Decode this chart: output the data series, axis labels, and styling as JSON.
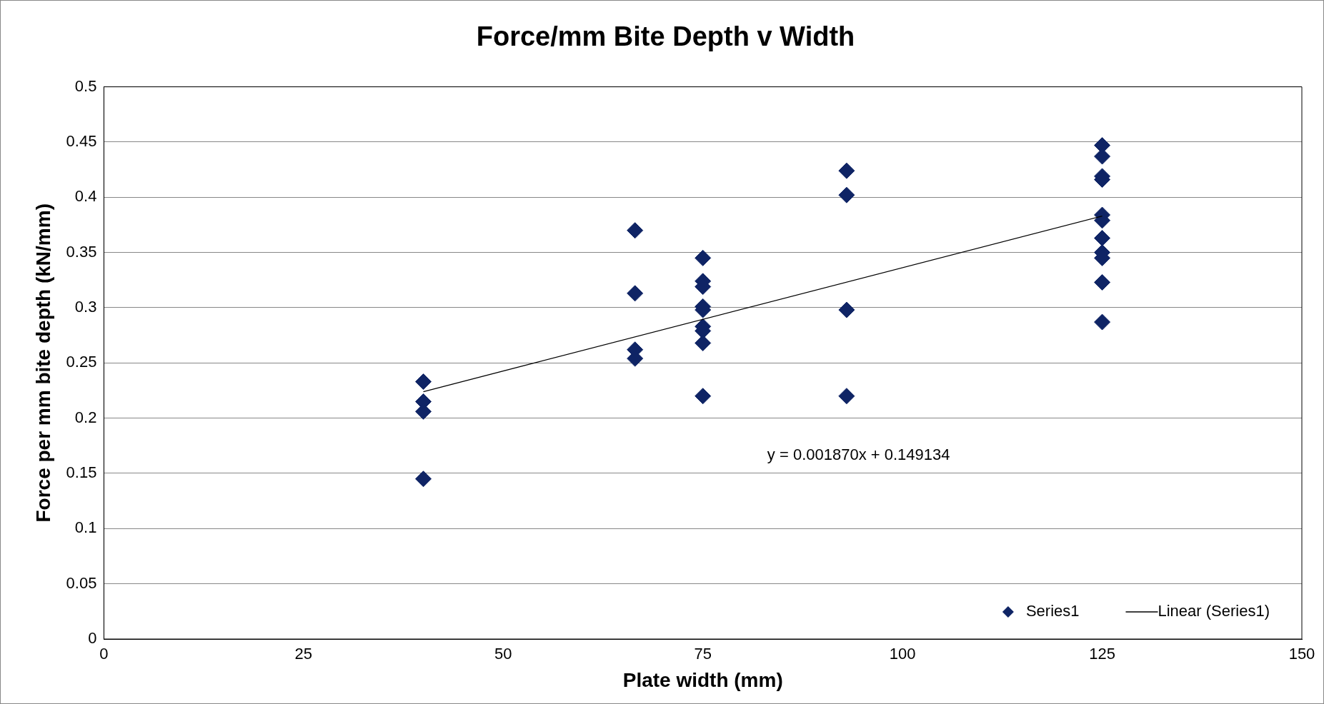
{
  "chart_data": {
    "type": "scatter",
    "title": "Force/mm Bite Depth v Width",
    "xlabel": "Plate width (mm)",
    "ylabel": "Force per mm bite depth (kN/mm)",
    "x": [
      40,
      40,
      40,
      40,
      66.5,
      66.5,
      66.5,
      66.5,
      75,
      75,
      75,
      75,
      75,
      75,
      75,
      75,
      75,
      93,
      93,
      93,
      93,
      125,
      125,
      125,
      125,
      125,
      125,
      125,
      125,
      125,
      125,
      125
    ],
    "series": [
      {
        "name": "Series1",
        "color": "#0f2465",
        "values": [
          0.233,
          0.215,
          0.206,
          0.145,
          0.37,
          0.313,
          0.262,
          0.254,
          0.345,
          0.324,
          0.319,
          0.301,
          0.298,
          0.283,
          0.279,
          0.268,
          0.22,
          0.424,
          0.402,
          0.298,
          0.22,
          0.447,
          0.437,
          0.419,
          0.416,
          0.384,
          0.379,
          0.363,
          0.35,
          0.345,
          0.323,
          0.287
        ]
      },
      {
        "name": "Linear (Series1)",
        "type": "line",
        "color": "#000000",
        "x": [
          40,
          125
        ],
        "values": [
          0.224,
          0.383
        ],
        "marker": "none"
      }
    ],
    "annotations": [
      "y = 0.001870x + 0.149134"
    ],
    "xlim": [
      0,
      150
    ],
    "xticks": [
      0,
      25,
      50,
      75,
      100,
      125,
      150
    ],
    "ylim": [
      0,
      0.5
    ],
    "yticks": [
      0,
      0.05,
      0.1,
      0.15,
      0.2,
      0.25,
      0.3,
      0.35,
      0.4,
      0.45,
      0.5
    ],
    "grid": "y",
    "legend": "bottom right",
    "marker": "diamond"
  }
}
